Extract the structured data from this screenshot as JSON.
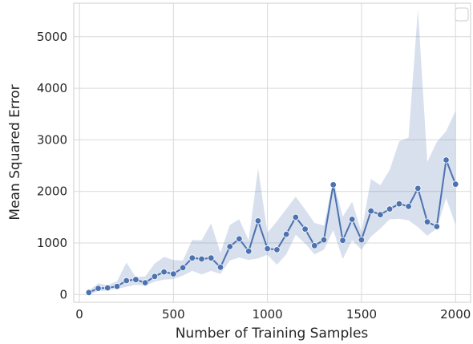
{
  "chart_data": {
    "type": "line",
    "title": "",
    "xlabel": "Number of Training Samples",
    "ylabel": "Mean Squared Error",
    "xlim": [
      -30,
      2080
    ],
    "ylim": [
      -150,
      5650
    ],
    "xticks": [
      0,
      500,
      1000,
      1500,
      2000
    ],
    "yticks": [
      0,
      1000,
      2000,
      3000,
      4000,
      5000
    ],
    "xtick_labels": [
      "0",
      "500",
      "1000",
      "1500",
      "2000"
    ],
    "ytick_labels": [
      "0",
      "1000",
      "2000",
      "3000",
      "4000",
      "5000"
    ],
    "grid": true,
    "legend": "top-right, empty",
    "line_color": "#4c72b0",
    "band_color": "#4c72b0",
    "series": [
      {
        "x": [
          50,
          100,
          150,
          200,
          250,
          300,
          350,
          400,
          450,
          500,
          550,
          600,
          650,
          700,
          750,
          800,
          850,
          900,
          950,
          1000,
          1050,
          1100,
          1150,
          1200,
          1250,
          1300,
          1350,
          1400,
          1450,
          1500,
          1550,
          1600,
          1650,
          1700,
          1750,
          1800,
          1850,
          1900,
          1950,
          2000
        ],
        "y": [
          40,
          120,
          130,
          160,
          270,
          290,
          230,
          350,
          440,
          400,
          520,
          710,
          690,
          710,
          530,
          930,
          1080,
          840,
          1430,
          890,
          870,
          1170,
          1500,
          1270,
          950,
          1060,
          2130,
          1050,
          1460,
          1060,
          1620,
          1550,
          1660,
          1760,
          1710,
          2060,
          1410,
          1320,
          2610,
          2140
        ],
        "lower": [
          10,
          60,
          80,
          110,
          150,
          190,
          170,
          250,
          290,
          300,
          370,
          460,
          390,
          460,
          400,
          660,
          720,
          670,
          700,
          770,
          580,
          780,
          1160,
          990,
          780,
          870,
          1250,
          690,
          1050,
          870,
          1120,
          1280,
          1460,
          1470,
          1440,
          1310,
          1140,
          1280,
          1870,
          1350
        ],
        "upper": [
          80,
          220,
          180,
          260,
          620,
          340,
          350,
          600,
          730,
          670,
          660,
          1060,
          1050,
          1380,
          810,
          1350,
          1460,
          1050,
          2450,
          1200,
          1420,
          1660,
          1900,
          1650,
          1390,
          1340,
          2220,
          1510,
          1800,
          1210,
          2240,
          2120,
          2420,
          2970,
          3040,
          5540,
          2570,
          2960,
          3170,
          3560
        ]
      }
    ]
  }
}
